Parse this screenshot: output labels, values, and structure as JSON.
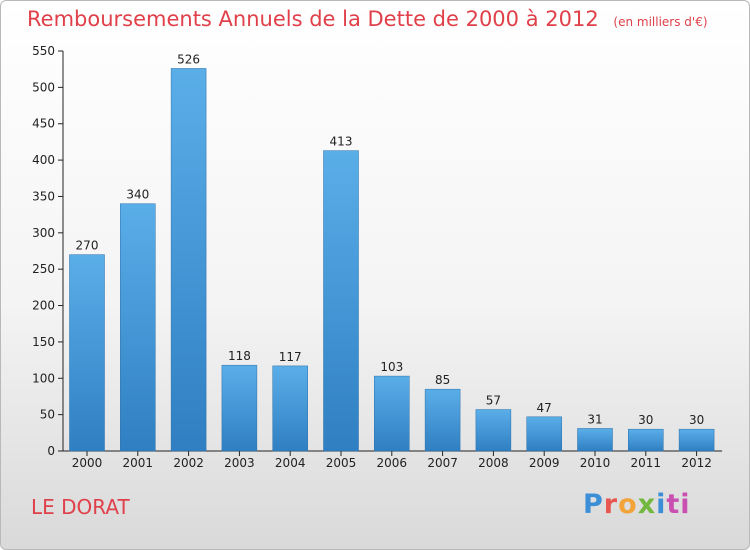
{
  "page": {
    "title": "Remboursements Annuels de la Dette de 2000 à 2012",
    "subtitle": "(en milliers d'€)",
    "commune": "LE DORAT",
    "logo_letters": [
      "P",
      "r",
      "o",
      "x",
      "i",
      "ti"
    ]
  },
  "chart_data": {
    "type": "bar",
    "title": "Remboursements Annuels de la Dette de 2000 à 2012",
    "subtitle": "(en milliers d'€)",
    "xlabel": "",
    "ylabel": "",
    "categories": [
      "2000",
      "2001",
      "2002",
      "2003",
      "2004",
      "2005",
      "2006",
      "2007",
      "2008",
      "2009",
      "2010",
      "2011",
      "2012"
    ],
    "values": [
      270,
      340,
      526,
      118,
      117,
      413,
      103,
      85,
      57,
      47,
      31,
      30,
      30
    ],
    "ylim": [
      0,
      550
    ],
    "yticks": [
      0,
      50,
      100,
      150,
      200,
      250,
      300,
      350,
      400,
      450,
      500,
      550
    ],
    "grid": false,
    "legend": "none",
    "bar_color": "#3d8fd6"
  }
}
